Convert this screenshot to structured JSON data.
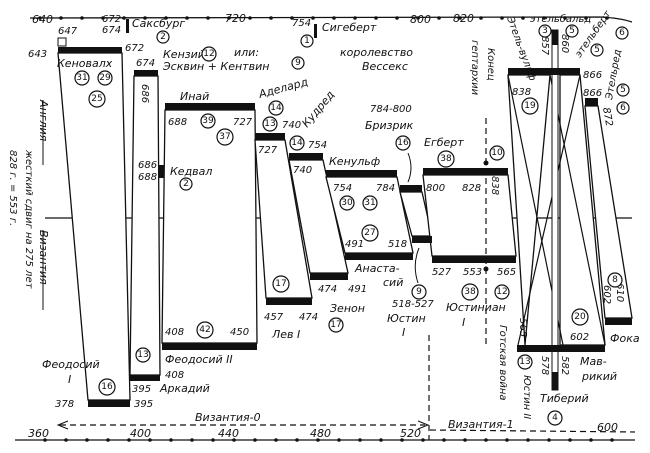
{
  "axis": {
    "top_ticks": [
      "640",
      "720",
      "800",
      "820"
    ],
    "bottom_ticks": [
      "360",
      "400",
      "440",
      "480",
      "520",
      "600"
    ],
    "byzantium0": "Византия-0",
    "byzantium1": "Византия-1"
  },
  "side": {
    "england": "Англия",
    "byzantium": "Византия",
    "shift": "жесткий сдвиг на 275 лет",
    "equation": "828 г. = 553 г."
  },
  "england": {
    "y647": "647",
    "y643": "643",
    "y672a": "672",
    "y674a": "674",
    "saxburg": "Саксбург",
    "n_saxburg": "2",
    "y672b": "672",
    "y674b": "674",
    "cenwalh": "Кеновалх",
    "n31": "31",
    "n29": "29",
    "n25": "25",
    "kenzii": "Кензий",
    "n12": "12",
    "or": "или:",
    "escwine": "Эсквин + Кентвин",
    "n9": "9",
    "y686v": "686",
    "ine": "Инай",
    "y688": "688",
    "n39": "39",
    "y727": "727",
    "n37": "37",
    "y686": "686",
    "y688b": "688",
    "kedval": "Кедвал",
    "n_kedval": "2",
    "adelard": "Аделард",
    "n14a": "14",
    "n13": "13",
    "y740": "740",
    "cudred": "Кудред",
    "y727b": "727",
    "n14b": "14",
    "y754": "754",
    "y740b": "740",
    "y754s": "754",
    "sigebert": "Сигеберт",
    "n1": "1",
    "kingdom": "королевство",
    "wessex": "Вессекс",
    "brizrik_years": "784-800",
    "brizrik": "Бризрик",
    "n16": "16",
    "kenulf": "Кенульф",
    "y754c": "754",
    "y784": "784",
    "n30": "30",
    "n31b": "31",
    "egbert": "Егберт",
    "n38": "38",
    "y800": "800",
    "y828": "828",
    "y838": "838",
    "n10": "10",
    "end": "Конец",
    "heptarchy": "гептархии",
    "ethelbald": "этельбальд",
    "n3": "3",
    "n5a": "5",
    "y857": "857",
    "y860": "860",
    "ethelwulf": "Этель-вульф",
    "ethelbert": "этельберт",
    "n6a": "6",
    "n5b": "5",
    "y866a": "866",
    "y866b": "866",
    "ethelred": "Этельред",
    "n5c": "5",
    "n6b": "6",
    "y872": "872",
    "y838b": "838",
    "n19": "19"
  },
  "byzantium": {
    "n27": "27",
    "y491": "491",
    "y518": "518",
    "anastasius1": "Анаста-",
    "anastasius2": "сий",
    "n9": "9",
    "justin_years": "518-527",
    "justin": "Юстин",
    "justin_num": "I",
    "y474": "474",
    "y491b": "491",
    "zeno": "Зенон",
    "n17a": "17",
    "y527": "527",
    "y553": "553",
    "y565": "565",
    "n38": "38",
    "n12": "12",
    "justinian": "Юстиниан",
    "justinian_num": "I",
    "gothic_war": "Готская война",
    "n17b": "17",
    "y457": "457",
    "y474b": "474",
    "leo": "Лев I",
    "y408": "408",
    "n42": "42",
    "y450": "450",
    "theodosius2": "Феодосий II",
    "y408b": "408",
    "n13": "13",
    "y395": "395",
    "arcadius": "Аркадий",
    "theodosius1": "Феодосий",
    "theodosius1_num": "I",
    "n16": "16",
    "y378": "378",
    "y395b": "395",
    "y565v": "565",
    "n20": "20",
    "y602": "602",
    "n8": "8",
    "y602v": "602",
    "y610v": "610",
    "phocas": "Фока",
    "n13b": "13",
    "justin2": "Юстин II",
    "y578": "578",
    "y582": "582",
    "maurice1": "Мав-",
    "maurice2": "рикий",
    "tiberius": "Тиберий",
    "n4": "4"
  }
}
